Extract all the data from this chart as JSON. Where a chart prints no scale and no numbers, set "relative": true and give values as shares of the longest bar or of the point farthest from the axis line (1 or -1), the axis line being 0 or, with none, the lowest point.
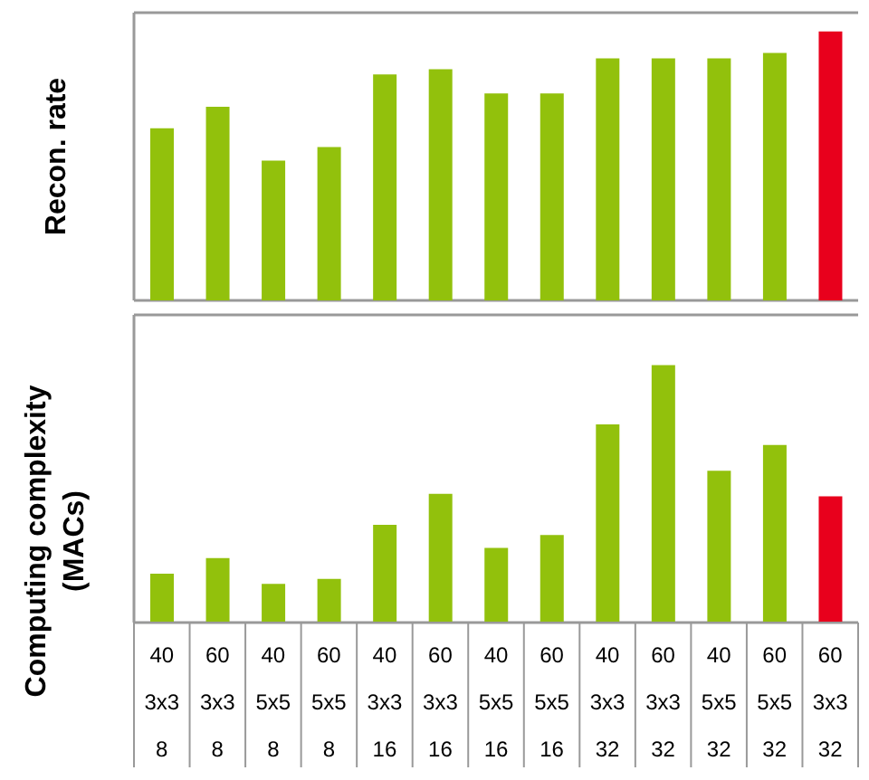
{
  "chart_data": [
    {
      "type": "bar",
      "ylabel": "Recon. rate",
      "relative": true,
      "tick_labels": false,
      "categories": [
        null,
        null,
        null,
        null,
        null,
        null,
        null,
        null,
        null,
        null,
        null,
        null,
        null
      ],
      "values": [
        0.64,
        0.72,
        0.52,
        0.57,
        0.84,
        0.86,
        0.77,
        0.77,
        0.9,
        0.9,
        0.9,
        0.92,
        1
      ],
      "colors": [
        "#92c10c",
        "#92c10c",
        "#92c10c",
        "#92c10c",
        "#92c10c",
        "#92c10c",
        "#92c10c",
        "#92c10c",
        "#92c10c",
        "#92c10c",
        "#92c10c",
        "#92c10c",
        "#e8001c"
      ]
    },
    {
      "type": "bar",
      "ylabel": "Computing complexity\n(MACs)",
      "relative": true,
      "tick_labels": "x",
      "categories": [
        "40\n3x3\n8",
        "60\n3x3\n8",
        "40\n5x5\n8",
        "60\n5x5\n8",
        "40\n3x3\n16",
        "60\n3x3\n16",
        "40\n5x5\n16",
        "60\n5x5\n16",
        "40\n3x3\n32",
        "60\n3x3\n32",
        "40\n5x5\n32",
        "60\n5x5\n32",
        "60\n3x3\n32"
      ],
      "values": [
        0.19,
        0.25,
        0.15,
        0.17,
        0.38,
        0.5,
        0.29,
        0.34,
        0.77,
        1,
        0.59,
        0.69,
        0.49
      ],
      "colors": [
        "#92c10c",
        "#92c10c",
        "#92c10c",
        "#92c10c",
        "#92c10c",
        "#92c10c",
        "#92c10c",
        "#92c10c",
        "#92c10c",
        "#92c10c",
        "#92c10c",
        "#92c10c",
        "#e8001c"
      ]
    }
  ]
}
